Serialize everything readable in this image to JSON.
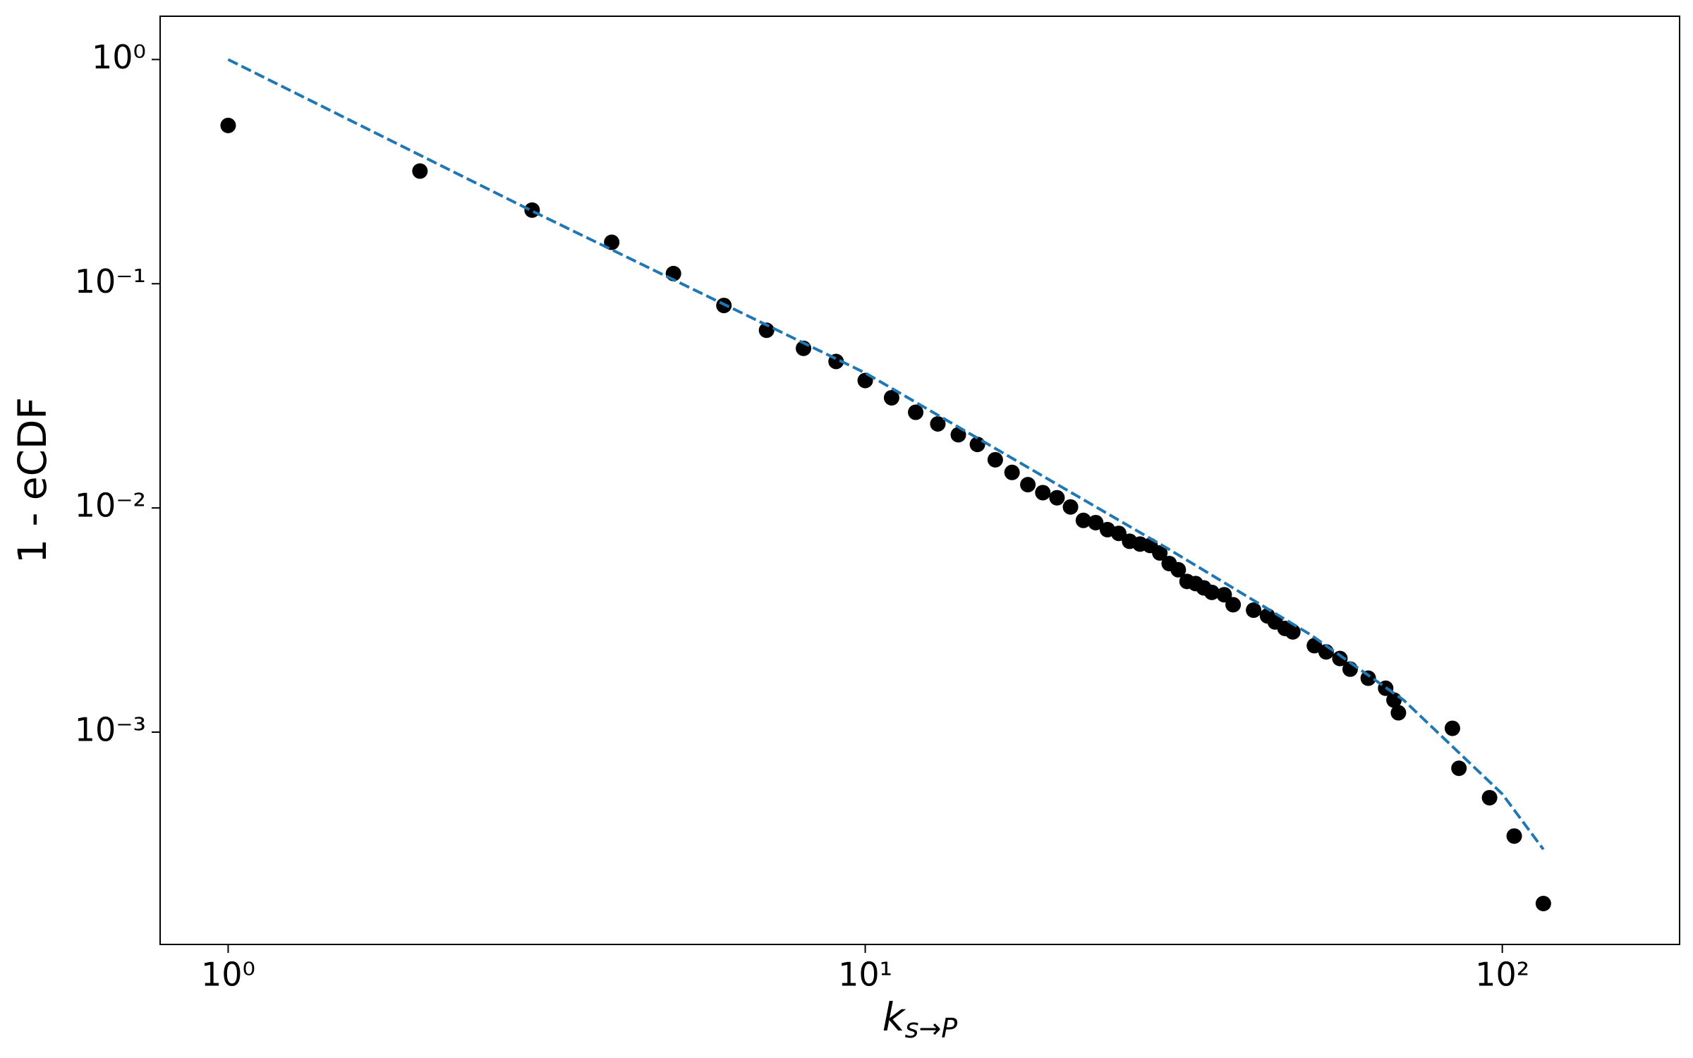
{
  "chart_data": {
    "type": "scatter",
    "xlabel": {
      "text": "k",
      "subscript": "s→P"
    },
    "ylabel": "1 - eCDF",
    "xscale": "log",
    "yscale": "log",
    "xlim": [
      0.782,
      189.8
    ],
    "ylim": [
      0.000113,
      1.56
    ],
    "xticks": [
      {
        "value": 1,
        "label": "10⁰"
      },
      {
        "value": 10,
        "label": "10¹"
      },
      {
        "value": 100,
        "label": "10²"
      }
    ],
    "yticks": [
      {
        "value": 0.001,
        "label": "10⁻³"
      },
      {
        "value": 0.01,
        "label": "10⁻²"
      },
      {
        "value": 0.1,
        "label": "10⁻¹"
      },
      {
        "value": 1,
        "label": "10⁰"
      }
    ],
    "series": [
      {
        "type": "scatter",
        "color": "#000000",
        "x": [
          1,
          2,
          3,
          4,
          5,
          6,
          7,
          8,
          9,
          10,
          11,
          12,
          13,
          14,
          15,
          16,
          17,
          18,
          19,
          20,
          21,
          22,
          23,
          24,
          25,
          26,
          27,
          28,
          29,
          30,
          31,
          32,
          33,
          34,
          35,
          36.6,
          37.8,
          40.7,
          42.8,
          44,
          45.6,
          46.9,
          50.7,
          52.9,
          55.6,
          57.7,
          61.6,
          65.6,
          67.6,
          68.7,
          83.5,
          85.5,
          95.5,
          104.4,
          116
        ],
        "values": [
          0.508,
          0.318,
          0.213,
          0.153,
          0.111,
          0.08,
          0.062,
          0.0515,
          0.045,
          0.037,
          0.031,
          0.0267,
          0.0237,
          0.0212,
          0.0192,
          0.0164,
          0.0144,
          0.0127,
          0.0117,
          0.0111,
          0.0101,
          0.0088,
          0.0086,
          0.008,
          0.0077,
          0.0071,
          0.0069,
          0.0068,
          0.0063,
          0.00565,
          0.0053,
          0.0047,
          0.0046,
          0.0044,
          0.0042,
          0.0041,
          0.0037,
          0.0035,
          0.0033,
          0.0031,
          0.0029,
          0.0028,
          0.00243,
          0.00228,
          0.00213,
          0.00191,
          0.00174,
          0.00157,
          0.00139,
          0.00122,
          0.00104,
          0.00069,
          0.00051,
          0.000344,
          0.000172
        ]
      },
      {
        "type": "line",
        "color": "#1f77b4",
        "dashed": true,
        "x": [
          1,
          3,
          10,
          30,
          50,
          70,
          100,
          116
        ],
        "values": [
          1,
          0.211,
          0.04,
          0.00653,
          0.00272,
          0.00139,
          0.00053,
          0.0003
        ]
      }
    ]
  }
}
